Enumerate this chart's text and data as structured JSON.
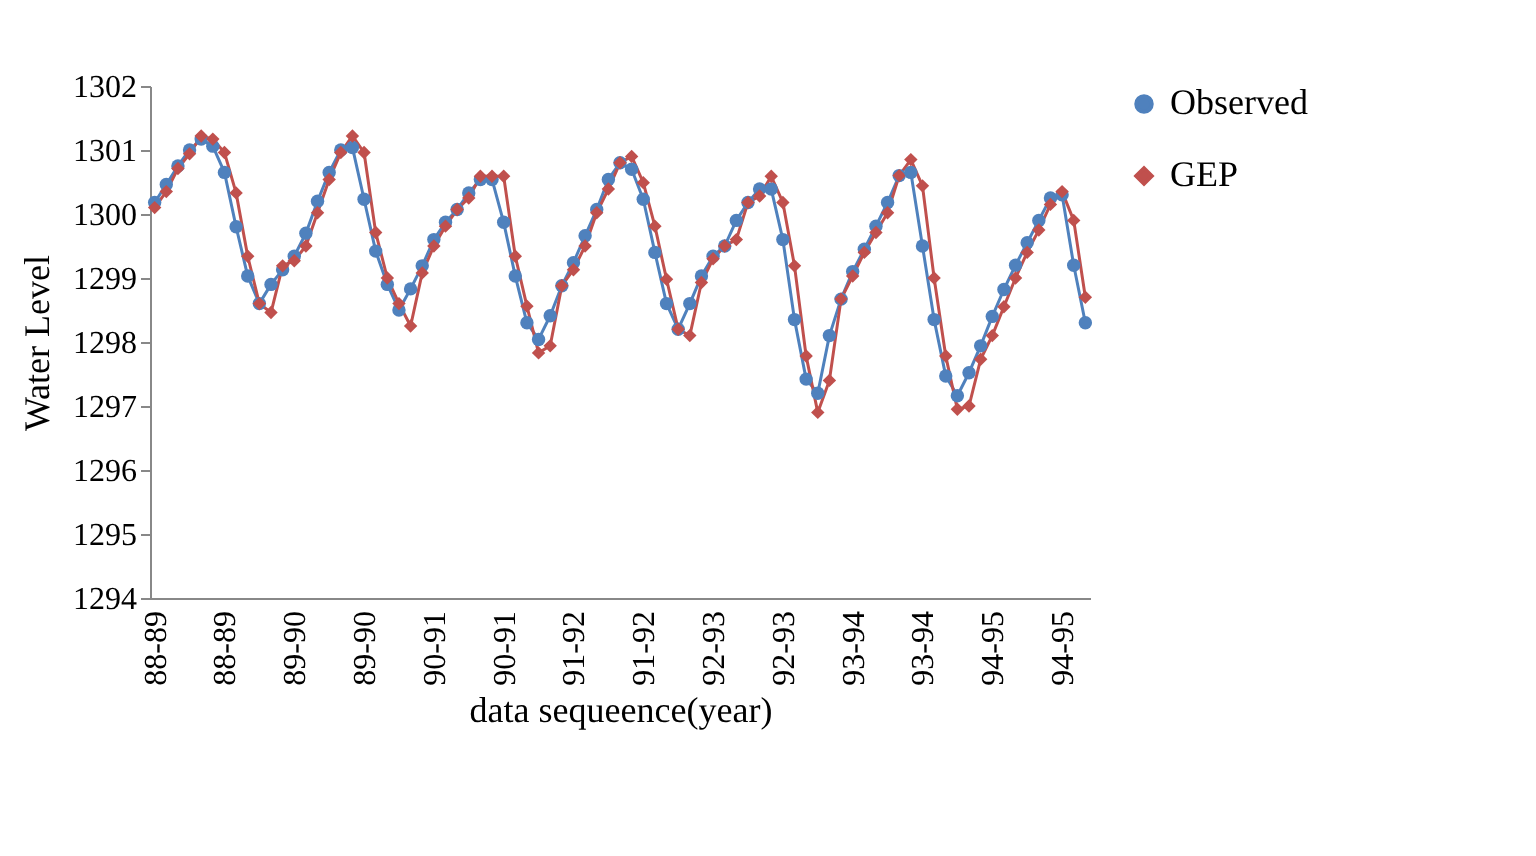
{
  "chart_data": {
    "type": "line",
    "xlabel": "data sequeence(year)",
    "ylabel": "Water Level",
    "categories": [
      "88-89",
      null,
      null,
      null,
      null,
      null,
      "88-89",
      null,
      null,
      null,
      null,
      null,
      "89-90",
      null,
      null,
      null,
      null,
      null,
      "89-90",
      null,
      null,
      null,
      null,
      null,
      "90-91",
      null,
      null,
      null,
      null,
      null,
      "90-91",
      null,
      null,
      null,
      null,
      null,
      "91-92",
      null,
      null,
      null,
      null,
      null,
      "91-92",
      null,
      null,
      null,
      null,
      null,
      "92-93",
      null,
      null,
      null,
      null,
      null,
      "92-93",
      null,
      null,
      null,
      null,
      null,
      "93-94",
      null,
      null,
      null,
      null,
      null,
      "93-94",
      null,
      null,
      null,
      null,
      null,
      "94-95",
      null,
      null,
      null,
      null,
      null,
      "94-95",
      null,
      null
    ],
    "series": [
      {
        "name": "Observed",
        "color": "#4f81bd",
        "marker": "circle",
        "values": [
          1300.18,
          1300.46,
          1300.75,
          1301.0,
          1301.17,
          1301.06,
          1300.65,
          1299.8,
          1299.03,
          1298.6,
          1298.9,
          1299.13,
          1299.34,
          1299.7,
          1300.2,
          1300.65,
          1301.0,
          1301.04,
          1300.23,
          1299.42,
          1298.9,
          1298.5,
          1298.83,
          1299.19,
          1299.6,
          1299.87,
          1300.07,
          1300.33,
          1300.54,
          1300.54,
          1299.87,
          1299.03,
          1298.3,
          1298.04,
          1298.41,
          1298.88,
          1299.24,
          1299.66,
          1300.07,
          1300.54,
          1300.8,
          1300.7,
          1300.23,
          1299.4,
          1298.6,
          1298.2,
          1298.6,
          1299.03,
          1299.34,
          1299.5,
          1299.9,
          1300.18,
          1300.39,
          1300.39,
          1299.6,
          1298.35,
          1297.42,
          1297.2,
          1298.1,
          1298.67,
          1299.1,
          1299.45,
          1299.81,
          1300.18,
          1300.6,
          1300.65,
          1299.5,
          1298.35,
          1297.47,
          1297.16,
          1297.52,
          1297.94,
          1298.4,
          1298.82,
          1299.2,
          1299.55,
          1299.9,
          1300.25,
          1300.3,
          1299.2,
          1298.3
        ]
      },
      {
        "name": "GEP",
        "color": "#c0504d",
        "marker": "diamond",
        "values": [
          1300.1,
          1300.35,
          1300.71,
          1300.94,
          1301.22,
          1301.17,
          1300.96,
          1300.33,
          1299.34,
          1298.6,
          1298.46,
          1299.19,
          1299.27,
          1299.5,
          1300.02,
          1300.54,
          1300.96,
          1301.22,
          1300.96,
          1299.71,
          1299.0,
          1298.6,
          1298.25,
          1299.08,
          1299.5,
          1299.81,
          1300.07,
          1300.25,
          1300.59,
          1300.59,
          1300.59,
          1299.34,
          1298.56,
          1297.83,
          1297.94,
          1298.88,
          1299.13,
          1299.5,
          1300.02,
          1300.39,
          1300.8,
          1300.9,
          1300.49,
          1299.81,
          1298.98,
          1298.2,
          1298.1,
          1298.93,
          1299.3,
          1299.5,
          1299.6,
          1300.18,
          1300.28,
          1300.59,
          1300.18,
          1299.19,
          1297.78,
          1296.9,
          1297.4,
          1298.67,
          1299.03,
          1299.4,
          1299.71,
          1300.02,
          1300.6,
          1300.85,
          1300.44,
          1299.0,
          1297.78,
          1296.95,
          1297.0,
          1297.73,
          1298.1,
          1298.55,
          1299.0,
          1299.4,
          1299.75,
          1300.15,
          1300.35,
          1299.9,
          1298.7
        ]
      }
    ],
    "ylim": [
      1294,
      1302
    ],
    "yticks": [
      1294,
      1295,
      1296,
      1297,
      1298,
      1299,
      1300,
      1301,
      1302
    ],
    "grid": false,
    "legend": "right",
    "line_style": "solid"
  }
}
